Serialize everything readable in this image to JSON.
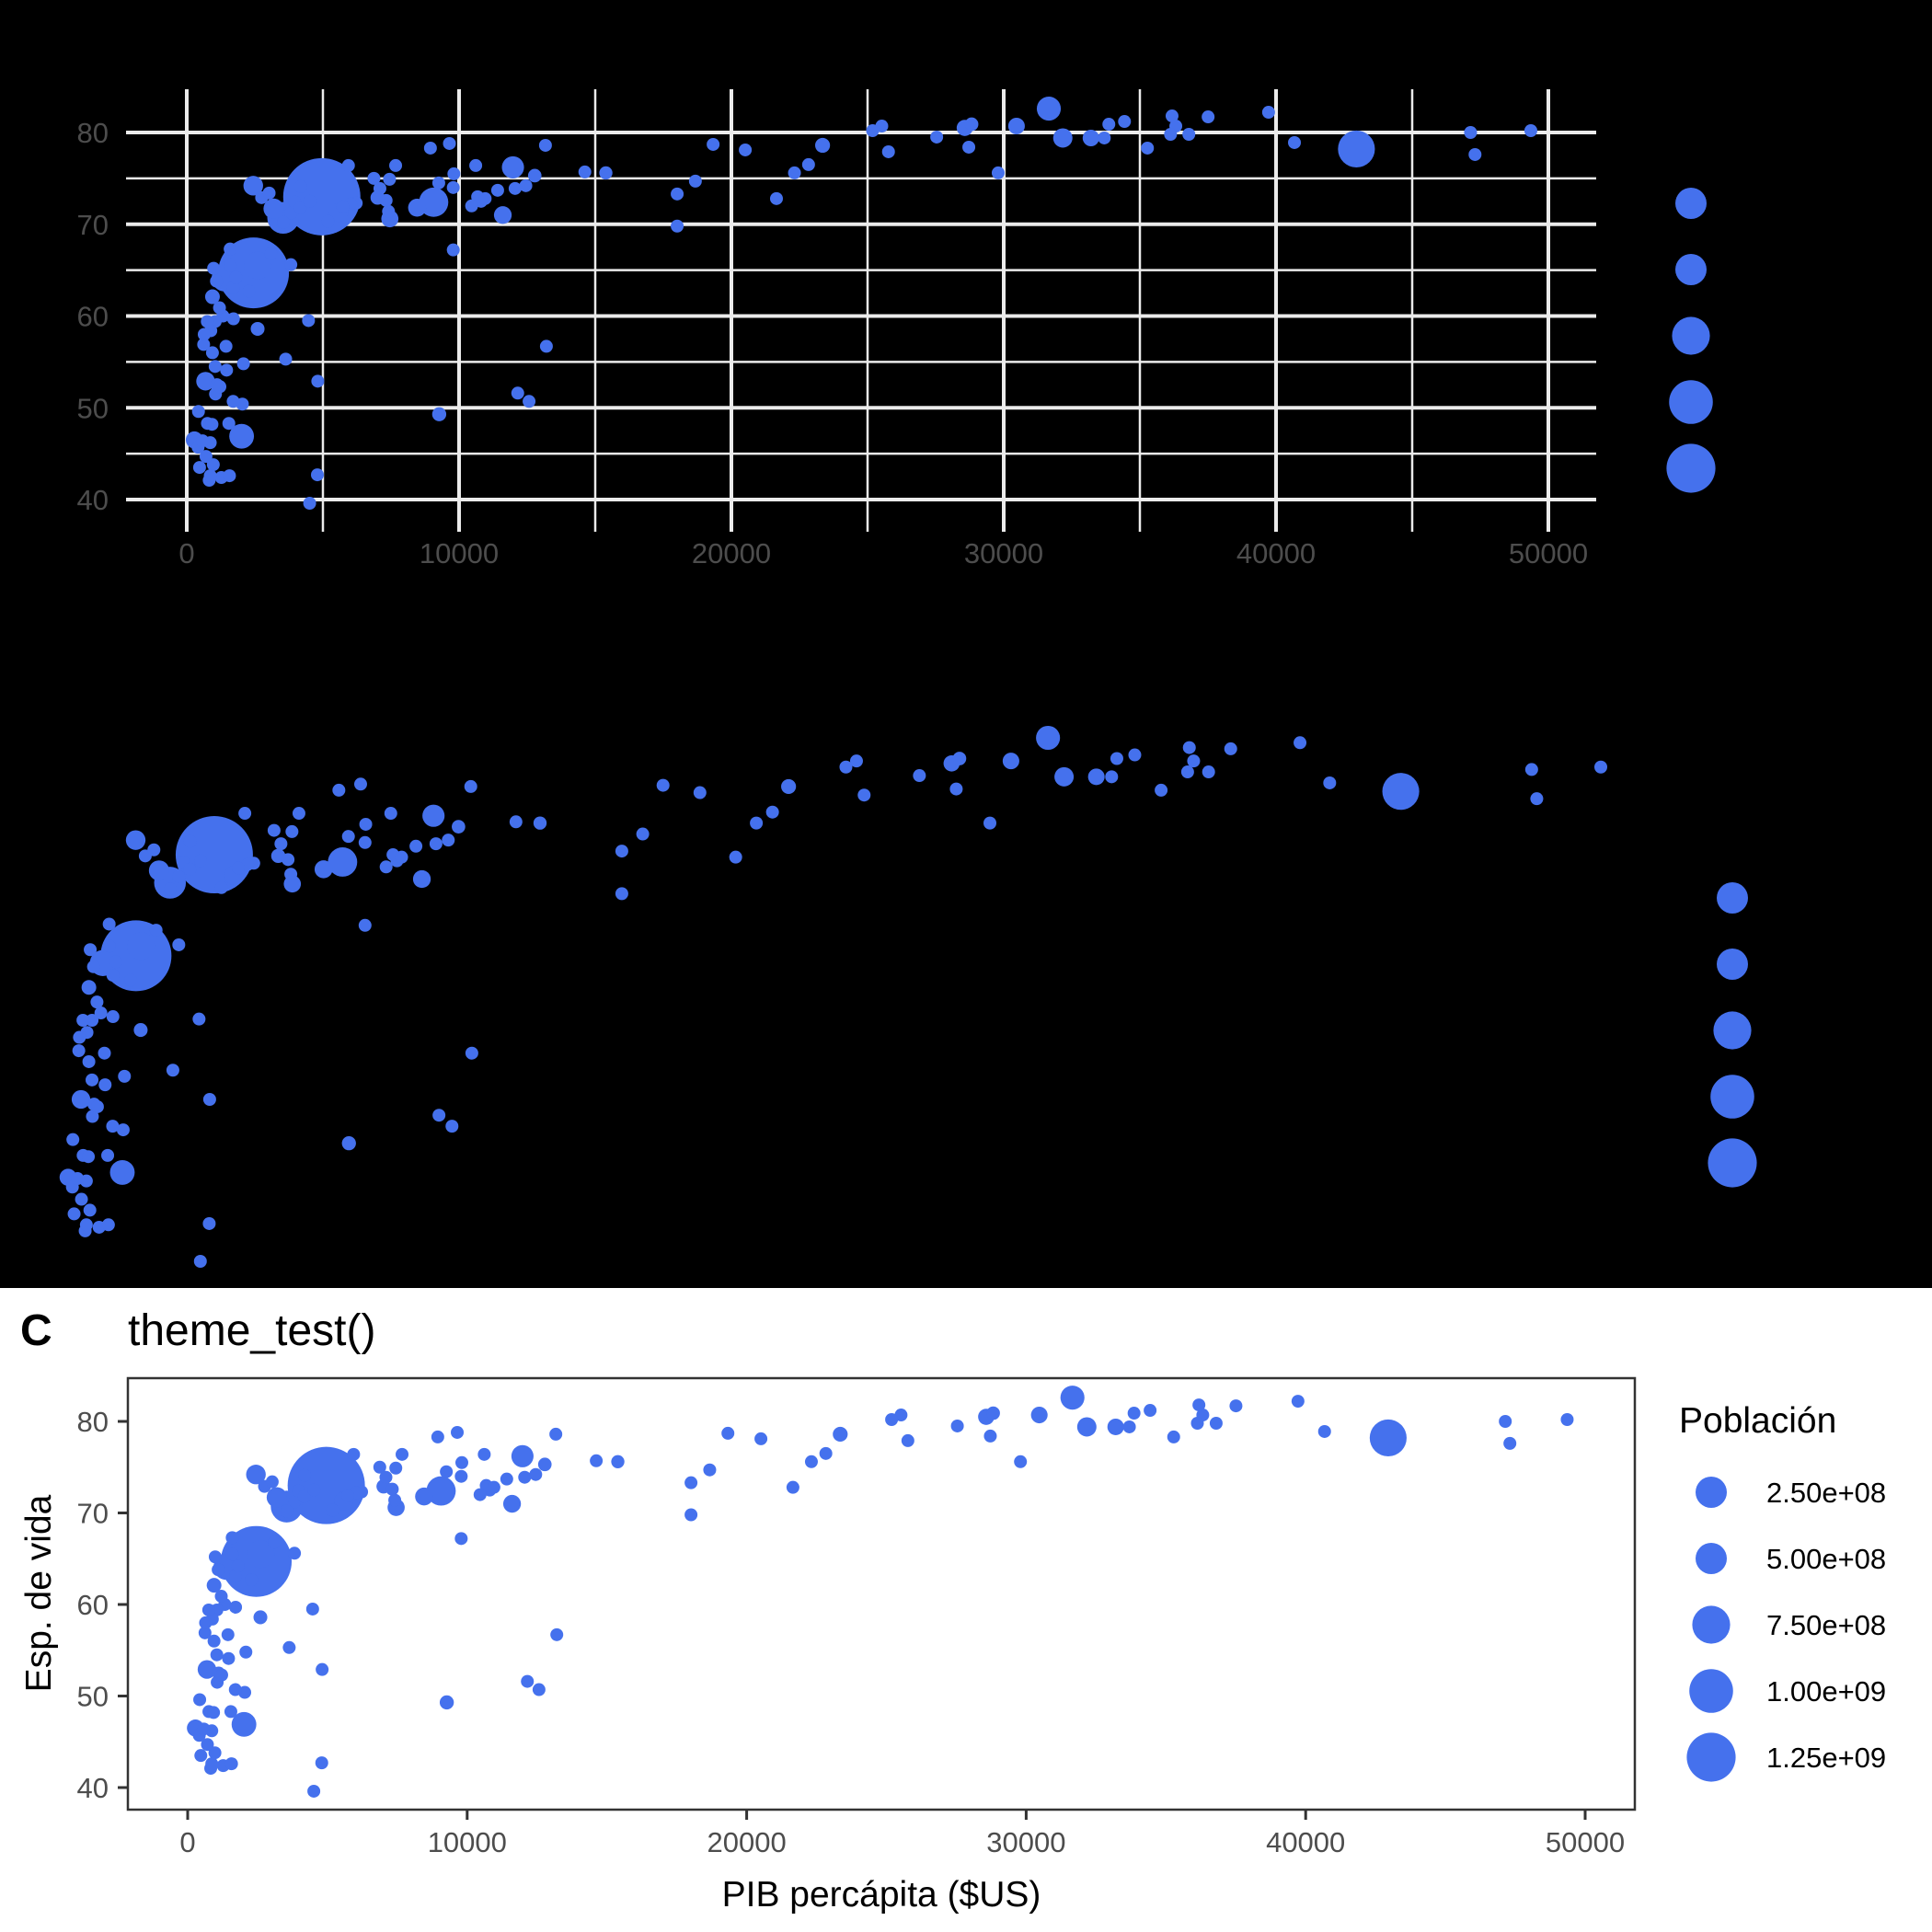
{
  "colors": {
    "point": "#4571ED",
    "grid": "#EBEBEB",
    "tick_text": "#4D4D4D",
    "panel_dark_bg": "#000000",
    "frame": "#333333"
  },
  "panels": {
    "A": {
      "tag": "",
      "title": "",
      "theme": "dark background with light grid"
    },
    "B": {
      "tag": "",
      "title": "",
      "theme": "blank / void"
    },
    "C": {
      "tag": "C",
      "title": "theme_test()"
    }
  },
  "axes": {
    "x_ticks": [
      "0",
      "10000",
      "20000",
      "30000",
      "40000",
      "50000"
    ],
    "y_ticks": [
      "40",
      "50",
      "60",
      "70",
      "80"
    ],
    "x_title": "PIB percápita ($US)",
    "y_title": "Esp. de vida"
  },
  "legend": {
    "title": "Población",
    "labels": [
      "2.50e+08",
      "5.00e+08",
      "7.50e+08",
      "1.00e+09",
      "1.25e+09"
    ]
  },
  "chart_data": {
    "type": "scatter",
    "title": "theme_test()",
    "xlabel": "PIB percápita ($US)",
    "ylabel": "Esp. de vida",
    "size_legend": "Población",
    "size_breaks": [
      250000000,
      500000000,
      750000000,
      1000000000,
      1250000000
    ],
    "xlim": [
      0,
      50000
    ],
    "ylim": [
      39,
      83
    ],
    "x_ticks": [
      0,
      10000,
      20000,
      30000,
      40000,
      50000
    ],
    "y_ticks": [
      40,
      50,
      60,
      70,
      80
    ],
    "points": [
      [
        975,
        43.8,
        31.9
      ],
      [
        5937,
        76.4,
        3.6
      ],
      [
        6223,
        72.3,
        33.3
      ],
      [
        4797,
        42.7,
        12.4
      ],
      [
        12779,
        75.3,
        40.3
      ],
      [
        34435,
        81.2,
        20.4
      ],
      [
        36126,
        79.8,
        8.2
      ],
      [
        29796,
        75.6,
        0.7
      ],
      [
        1391,
        64.1,
        150.4
      ],
      [
        33693,
        79.4,
        10.4
      ],
      [
        1441,
        56.7,
        8.1
      ],
      [
        3822,
        65.6,
        9.1
      ],
      [
        7446,
        74.9,
        4.6
      ],
      [
        12570,
        50.7,
        1.6
      ],
      [
        9066,
        72.4,
        190.0
      ],
      [
        10681,
        73.0,
        7.3
      ],
      [
        1217,
        52.3,
        14.3
      ],
      [
        430,
        49.6,
        8.4
      ],
      [
        1714,
        59.7,
        14.1
      ],
      [
        2042,
        50.4,
        17.7
      ],
      [
        36319,
        80.7,
        33.4
      ],
      [
        706,
        44.7,
        4.4
      ],
      [
        1704,
        50.7,
        10.2
      ],
      [
        13172,
        78.6,
        16.3
      ],
      [
        4959,
        73.0,
        1318.7
      ],
      [
        7007,
        72.9,
        44.2
      ],
      [
        986,
        65.2,
        0.7
      ],
      [
        278,
        46.5,
        64.6
      ],
      [
        3633,
        55.3,
        3.8
      ],
      [
        9645,
        78.8,
        4.1
      ],
      [
        1545,
        48.3,
        18.0
      ],
      [
        14619,
        75.7,
        4.5
      ],
      [
        8948,
        78.3,
        11.4
      ],
      [
        22833,
        76.5,
        10.2
      ],
      [
        35278,
        78.3,
        5.5
      ],
      [
        2082,
        54.8,
        0.5
      ],
      [
        6025,
        72.2,
        9.3
      ],
      [
        6873,
        75.0,
        13.8
      ],
      [
        5581,
        71.3,
        80.3
      ],
      [
        5728,
        71.9,
        6.9
      ],
      [
        12154,
        51.6,
        0.6
      ],
      [
        641,
        58.0,
        4.9
      ],
      [
        690,
        52.9,
        76.5
      ],
      [
        33207,
        79.3,
        5.2
      ],
      [
        30470,
        80.7,
        61.1
      ],
      [
        13206,
        56.7,
        1.5
      ],
      [
        753,
        59.4,
        1.7
      ],
      [
        32170,
        79.4,
        82.4
      ],
      [
        1328,
        60.0,
        22.9
      ],
      [
        27538,
        79.5,
        10.7
      ],
      [
        5186,
        70.3,
        12.6
      ],
      [
        943,
        56.0,
        9.9
      ],
      [
        579,
        46.4,
        1.5
      ],
      [
        1202,
        60.9,
        8.5
      ],
      [
        3548,
        70.2,
        7.5
      ],
      [
        39725,
        82.2,
        6.98
      ],
      [
        18009,
        73.3,
        10.0
      ],
      [
        36181,
        81.8,
        0.3
      ],
      [
        2452,
        64.7,
        1110.4
      ],
      [
        3541,
        70.7,
        223.5
      ],
      [
        11606,
        71.0,
        69.5
      ],
      [
        4471,
        59.5,
        27.5
      ],
      [
        40676,
        78.9,
        4.1
      ],
      [
        25523,
        80.7,
        6.4
      ],
      [
        28570,
        80.5,
        58.1
      ],
      [
        7321,
        72.6,
        2.8
      ],
      [
        31656,
        82.6,
        127.5
      ],
      [
        4519,
        72.5,
        6.1
      ],
      [
        1463,
        54.1,
        35.6
      ],
      [
        1593,
        67.3,
        23.3
      ],
      [
        23348,
        78.6,
        49.0
      ],
      [
        47307,
        77.6,
        2.5
      ],
      [
        10461,
        72.0,
        3.9
      ],
      [
        1569,
        42.6,
        2.0
      ],
      [
        415,
        45.7,
        3.2
      ],
      [
        12057,
        73.9,
        6.0
      ],
      [
        1045,
        59.4,
        19.2
      ],
      [
        759,
        48.3,
        13.3
      ],
      [
        12452,
        74.2,
        24.8
      ],
      [
        1043,
        54.5,
        12.0
      ],
      [
        1803,
        64.2,
        3.3
      ],
      [
        10957,
        72.8,
        1.3
      ],
      [
        11978,
        76.2,
        108.7
      ],
      [
        3096,
        66.8,
        2.9
      ],
      [
        9254,
        74.5,
        0.7
      ],
      [
        3820,
        71.2,
        33.8
      ],
      [
        824,
        42.1,
        20.0
      ],
      [
        944,
        62.1,
        47.8
      ],
      [
        4811,
        52.9,
        2.1
      ],
      [
        1091,
        63.8,
        28.9
      ],
      [
        36798,
        79.8,
        16.6
      ],
      [
        25185,
        80.2,
        4.1
      ],
      [
        2749,
        72.9,
        5.7
      ],
      [
        620,
        56.9,
        12.9
      ],
      [
        2014,
        46.9,
        135.0
      ],
      [
        49357,
        80.2,
        4.6
      ],
      [
        22316,
        75.6,
        3.2
      ],
      [
        2606,
        65.5,
        169.3
      ],
      [
        9809,
        75.5,
        3.2
      ],
      [
        4173,
        71.8,
        6.7
      ],
      [
        7409,
        71.4,
        28.7
      ],
      [
        3190,
        71.7,
        91.1
      ],
      [
        15390,
        75.6,
        38.5
      ],
      [
        20510,
        78.1,
        10.6
      ],
      [
        19329,
        78.7,
        4.0
      ],
      [
        7670,
        76.4,
        0.8
      ],
      [
        10808,
        72.5,
        22.3
      ],
      [
        9787,
        67.2,
        23.0
      ],
      [
        863,
        46.2,
        8.9
      ],
      [
        1598,
        65.5,
        0.2
      ],
      [
        21655,
        72.8,
        27.6
      ],
      [
        1712,
        63.1,
        12.3
      ],
      [
        9787,
        74.0,
        10.2
      ],
      [
        862,
        42.6,
        6.1
      ],
      [
        47143,
        80.0,
        4.6
      ],
      [
        18678,
        74.7,
        5.4
      ],
      [
        25768,
        77.9,
        2.0
      ],
      [
        926,
        48.2,
        9.1
      ],
      [
        9270,
        49.3,
        43.9
      ],
      [
        28821,
        80.9,
        40.4
      ],
      [
        3970,
        72.4,
        20.4
      ],
      [
        2602,
        58.6,
        42.3
      ],
      [
        4513,
        39.6,
        1.1
      ],
      [
        33860,
        80.9,
        9.0
      ],
      [
        37506,
        81.7,
        7.6
      ],
      [
        4185,
        74.1,
        19.3
      ],
      [
        28718,
        78.4,
        23.2
      ],
      [
        1107,
        52.5,
        38.1
      ],
      [
        7458,
        70.6,
        65.1
      ],
      [
        883,
        58.4,
        5.7
      ],
      [
        18009,
        69.8,
        1.1
      ],
      [
        7093,
        73.9,
        10.3
      ],
      [
        8458,
        71.8,
        71.2
      ],
      [
        1056,
        51.5,
        29.2
      ],
      [
        33203,
        79.4,
        60.8
      ],
      [
        42952,
        78.2,
        301.1
      ],
      [
        10611,
        76.4,
        3.4
      ],
      [
        11416,
        73.7,
        26.1
      ],
      [
        2442,
        74.2,
        85.3
      ],
      [
        3025,
        73.4,
        4.0
      ],
      [
        2281,
        62.7,
        22.2
      ],
      [
        1271,
        42.4,
        11.7
      ],
      [
        470,
        43.5,
        12.3
      ]
    ]
  }
}
